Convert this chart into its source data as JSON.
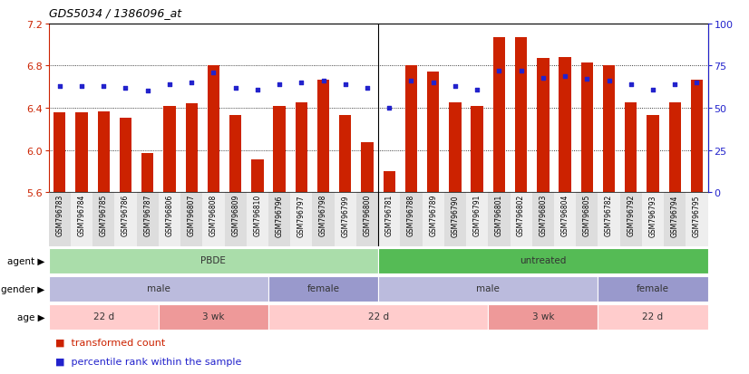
{
  "title": "GDS5034 / 1386096_at",
  "samples": [
    "GSM796783",
    "GSM796784",
    "GSM796785",
    "GSM796786",
    "GSM796787",
    "GSM796806",
    "GSM796807",
    "GSM796808",
    "GSM796809",
    "GSM796810",
    "GSM796796",
    "GSM796797",
    "GSM796798",
    "GSM796799",
    "GSM796800",
    "GSM796781",
    "GSM796788",
    "GSM796789",
    "GSM796790",
    "GSM796791",
    "GSM796801",
    "GSM796802",
    "GSM796803",
    "GSM796804",
    "GSM796805",
    "GSM796782",
    "GSM796792",
    "GSM796793",
    "GSM796794",
    "GSM796795"
  ],
  "bar_values": [
    6.36,
    6.36,
    6.37,
    6.31,
    5.97,
    6.42,
    6.44,
    6.8,
    6.33,
    5.91,
    6.42,
    6.45,
    6.67,
    6.33,
    6.07,
    5.8,
    6.8,
    6.74,
    6.45,
    6.42,
    7.07,
    7.07,
    6.87,
    6.88,
    6.83,
    6.8,
    6.45,
    6.33,
    6.45,
    6.67
  ],
  "percentile_values": [
    63,
    63,
    63,
    62,
    60,
    64,
    65,
    71,
    62,
    61,
    64,
    65,
    66,
    64,
    62,
    50,
    66,
    65,
    63,
    61,
    72,
    72,
    68,
    69,
    67,
    66,
    64,
    61,
    64,
    65
  ],
  "bar_bottom": 5.6,
  "ylim_left": [
    5.6,
    7.2
  ],
  "ylim_right": [
    0,
    100
  ],
  "yticks_left": [
    5.6,
    6.0,
    6.4,
    6.8,
    7.2
  ],
  "yticks_right": [
    0,
    25,
    50,
    75,
    100
  ],
  "bar_color": "#CC2200",
  "dot_color": "#2222CC",
  "agent_groups": [
    {
      "label": "PBDE",
      "start": 0,
      "end": 15,
      "color": "#AADDAA"
    },
    {
      "label": "untreated",
      "start": 15,
      "end": 30,
      "color": "#55BB55"
    }
  ],
  "gender_groups": [
    {
      "label": "male",
      "start": 0,
      "end": 10,
      "color": "#BBBBDD"
    },
    {
      "label": "female",
      "start": 10,
      "end": 15,
      "color": "#9999CC"
    },
    {
      "label": "male",
      "start": 15,
      "end": 25,
      "color": "#BBBBDD"
    },
    {
      "label": "female",
      "start": 25,
      "end": 30,
      "color": "#9999CC"
    }
  ],
  "age_groups": [
    {
      "label": "22 d",
      "start": 0,
      "end": 5,
      "color": "#FFCCCC"
    },
    {
      "label": "3 wk",
      "start": 5,
      "end": 10,
      "color": "#EE9999"
    },
    {
      "label": "22 d",
      "start": 10,
      "end": 20,
      "color": "#FFCCCC"
    },
    {
      "label": "3 wk",
      "start": 20,
      "end": 25,
      "color": "#EE9999"
    },
    {
      "label": "22 d",
      "start": 25,
      "end": 30,
      "color": "#FFCCCC"
    }
  ]
}
